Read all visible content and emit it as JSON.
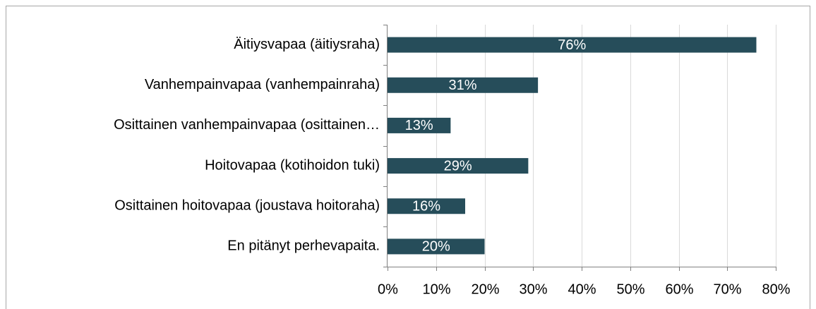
{
  "chart_data": {
    "type": "bar",
    "orientation": "horizontal",
    "categories": [
      "Äitiysvapaa (äitiysraha)",
      "Vanhempainvapaa (vanhempainraha)",
      "Osittainen vanhempainvapaa (osittainen…",
      "Hoitovapaa (kotihoidon tuki)",
      "Osittainen hoitovapaa (joustava hoitoraha)",
      "En pitänyt perhevapaita."
    ],
    "values": [
      76,
      31,
      13,
      29,
      16,
      20
    ],
    "value_labels": [
      "76%",
      "31%",
      "13%",
      "29%",
      "16%",
      "20%"
    ],
    "color": "#264d5a",
    "xlim": [
      0,
      80
    ],
    "xticks": [
      {
        "value": 0,
        "label": "0%"
      },
      {
        "value": 10,
        "label": "10%"
      },
      {
        "value": 20,
        "label": "20%"
      },
      {
        "value": 30,
        "label": "30%"
      },
      {
        "value": 40,
        "label": "40%"
      },
      {
        "value": 50,
        "label": "50%"
      },
      {
        "value": 60,
        "label": "60%"
      },
      {
        "value": 70,
        "label": "70%"
      },
      {
        "value": 80,
        "label": "80%"
      }
    ],
    "grid": true
  }
}
